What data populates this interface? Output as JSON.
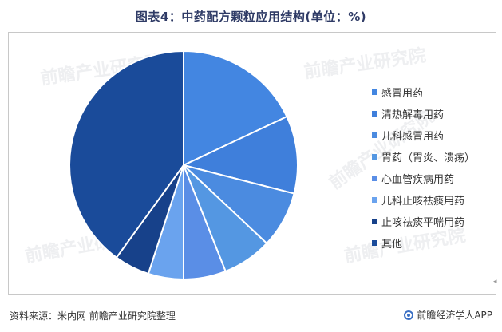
{
  "title": "图表4：中药配方颗粒应用结构(单位：%)",
  "source": "资料来源：米内网 前瞻产业研究院整理",
  "brand": "前瞻经济学人APP",
  "watermark": "前瞻产业研究院",
  "edge_mark": "◂",
  "chart_data": {
    "type": "pie",
    "title": "图表4：中药配方颗粒应用结构(单位：%)",
    "legend_position": "right",
    "start_angle_deg": 0,
    "direction": "clockwise",
    "slices": [
      {
        "name": "感冒用药",
        "value": 18.0,
        "color": "#4386e1"
      },
      {
        "name": "清热解毒用药",
        "value": 11.0,
        "color": "#3f7fdb"
      },
      {
        "name": "儿科感冒用药",
        "value": 8.0,
        "color": "#4b8be0"
      },
      {
        "name": "胃药（胃炎、溃疡）",
        "value": 7.0,
        "color": "#5497e2"
      },
      {
        "name": "心血管疾病用药",
        "value": 6.0,
        "color": "#5a8ee6"
      },
      {
        "name": "儿科止咳祛痰用药",
        "value": 5.0,
        "color": "#6aa3ee"
      },
      {
        "name": "止咳祛痰平喘用药",
        "value": 5.0,
        "color": "#17418a"
      },
      {
        "name": "其他",
        "value": 40.0,
        "color": "#1a4b9a"
      }
    ]
  }
}
